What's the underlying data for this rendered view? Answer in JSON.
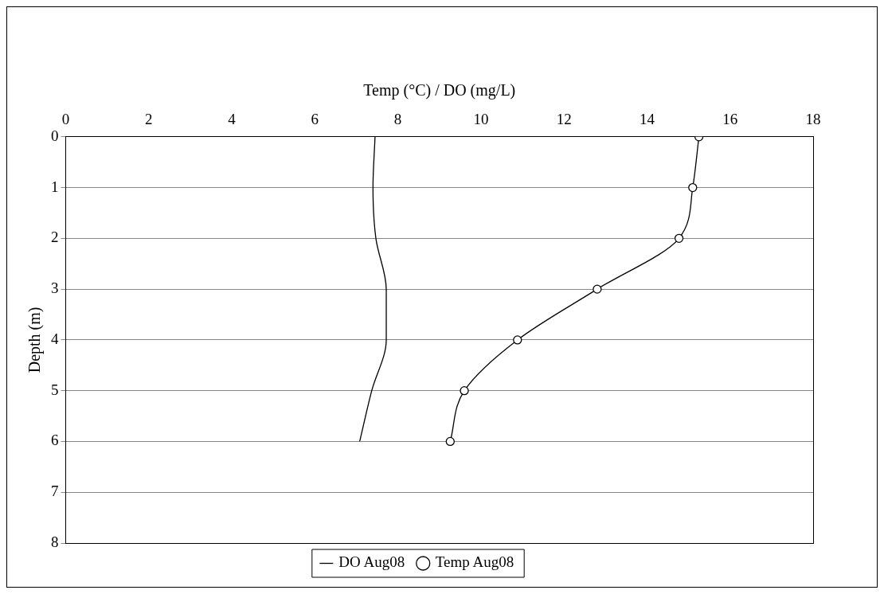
{
  "chart_data": {
    "type": "line",
    "xlabel": "Temp (°C) / DO (mg/L)",
    "ylabel": "Depth (m)",
    "xlim": [
      0,
      18
    ],
    "xticks": [
      0,
      2,
      4,
      6,
      8,
      10,
      12,
      14,
      16,
      18
    ],
    "ylim": [
      8,
      0
    ],
    "yticks": [
      0,
      1,
      2,
      3,
      4,
      5,
      6,
      7,
      8
    ],
    "grid": "y",
    "legend": "bottom",
    "series": [
      {
        "name": "DO Aug08",
        "color": "#000000",
        "marker": "none",
        "x": [
          7.45,
          7.4,
          7.47,
          7.72,
          7.72,
          7.37,
          7.08
        ],
        "values": [
          0,
          1,
          2,
          3,
          4,
          5,
          6
        ]
      },
      {
        "name": "Temp Aug08",
        "color": "#000000",
        "marker": "circle",
        "x": [
          15.25,
          15.1,
          14.77,
          12.8,
          10.88,
          9.6,
          9.26
        ],
        "values": [
          0,
          1,
          2,
          3,
          4,
          5,
          6
        ]
      }
    ]
  }
}
